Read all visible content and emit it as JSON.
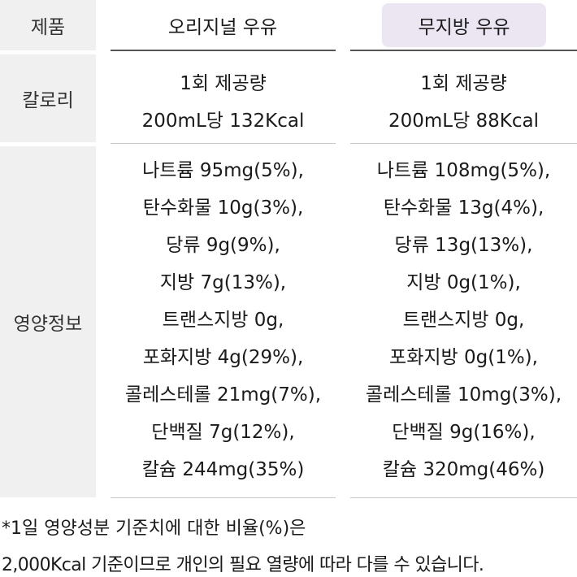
{
  "labels": {
    "product": "제품",
    "calorie": "칼로리",
    "nutrition": "영양정보"
  },
  "columns": [
    {
      "name": "오리지널 우유",
      "calorie": [
        "1회 제공량",
        "200mL당 132Kcal"
      ],
      "nutrition": [
        "나트륨 95mg(5%),",
        "탄수화물 10g(3%),",
        "당류 9g(9%),",
        "지방 7g(13%),",
        "트랜스지방 0g,",
        "포화지방 4g(29%),",
        "콜레스테롤 21mg(7%),",
        "단백질 7g(12%),",
        "칼슘 244mg(35%)"
      ]
    },
    {
      "name": "무지방 우유",
      "calorie": [
        "1회 제공량",
        "200mL당 88Kcal"
      ],
      "nutrition": [
        "나트륨 108mg(5%),",
        "탄수화물 13g(4%),",
        "당류 13g(13%),",
        "지방 0g(1%),",
        "트랜스지방 0g,",
        "포화지방 0g(1%),",
        "콜레스테롤 10mg(3%),",
        "단백질 9g(16%),",
        "칼슘 320mg(46%)"
      ]
    }
  ],
  "footnote": [
    "*1일 영양성분 기준치에 대한 비율(%)은",
    "2,000Kcal 기준이므로 개인의 필요 열량에 따라 다를 수 있습니다."
  ],
  "colors": {
    "label_bg": "#f0f0f0",
    "highlight_bg": "#ece6f3",
    "rule": "#555555"
  }
}
